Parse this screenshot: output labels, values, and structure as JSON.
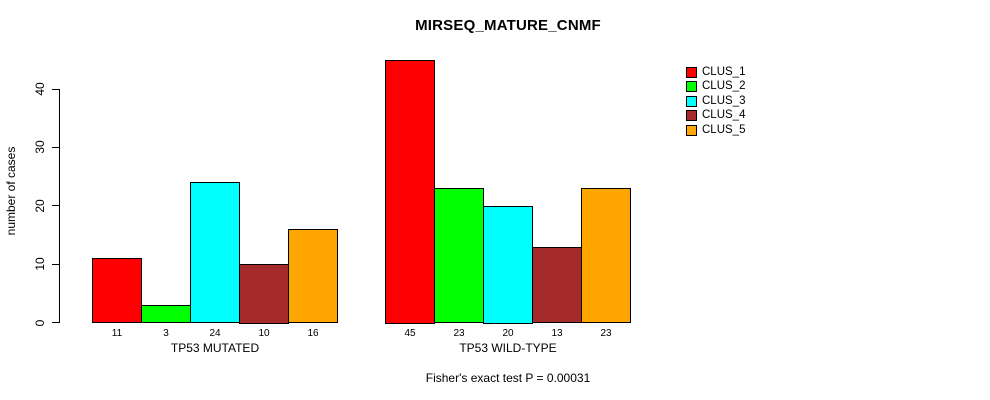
{
  "title": "MIRSEQ_MATURE_CNMF",
  "ylabel": "number of cases",
  "caption": "Fisher's exact test P = 0.00031",
  "chart_data": {
    "type": "bar",
    "title": "MIRSEQ_MATURE_CNMF",
    "xlabel": "",
    "ylabel": "number of cases",
    "categories": [
      "TP53 MUTATED",
      "TP53 WILD-TYPE"
    ],
    "series": [
      {
        "name": "CLUS_1",
        "color": "#FF0000",
        "values": [
          11,
          45
        ]
      },
      {
        "name": "CLUS_2",
        "color": "#00FF00",
        "values": [
          3,
          23
        ]
      },
      {
        "name": "CLUS_3",
        "color": "#00FFFF",
        "values": [
          24,
          20
        ]
      },
      {
        "name": "CLUS_4",
        "color": "#A52A2A",
        "values": [
          10,
          13
        ]
      },
      {
        "name": "CLUS_5",
        "color": "#FFA500",
        "values": [
          16,
          23
        ]
      }
    ],
    "bar_value_labels": [
      [
        "11",
        "3",
        "24",
        "10",
        "16"
      ],
      [
        "45",
        "23",
        "20",
        "13",
        "23"
      ]
    ],
    "yticks": [
      0,
      10,
      20,
      30,
      40
    ],
    "ylim": [
      0,
      45
    ],
    "grid": false,
    "legend_position": "top-right-outside",
    "annotation": "Fisher's exact test P = 0.00031",
    "axis_color": "#000000",
    "bar_border_color": "#000000",
    "background_color": "#FFFFFF"
  }
}
